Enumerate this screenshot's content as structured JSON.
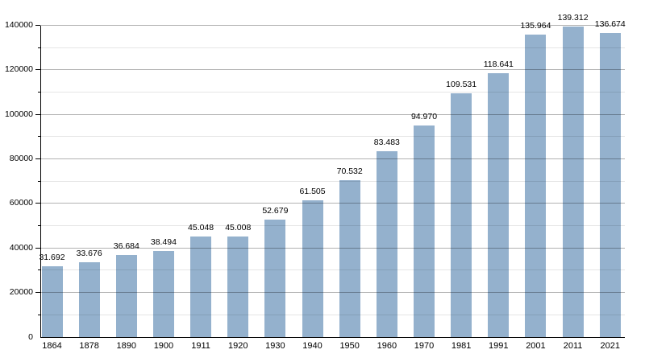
{
  "chart_data": {
    "type": "bar",
    "title": "",
    "xlabel": "",
    "ylabel": "",
    "categories": [
      "1864",
      "1878",
      "1890",
      "1900",
      "1911",
      "1920",
      "1930",
      "1940",
      "1950",
      "1960",
      "1970",
      "1981",
      "1991",
      "2001",
      "2011",
      "2021"
    ],
    "values": [
      31692,
      33676,
      36684,
      38494,
      45048,
      45008,
      52679,
      61505,
      70532,
      83483,
      94970,
      109531,
      118641,
      135964,
      139312,
      136674
    ],
    "value_labels": [
      "31.692",
      "33.676",
      "36.684",
      "38.494",
      "45.048",
      "45.008",
      "52.679",
      "61.505",
      "70.532",
      "83.483",
      "94.970",
      "109.531",
      "118.641",
      "135.964",
      "139.312",
      "136.674"
    ],
    "ylim": [
      0,
      140000
    ],
    "y_major_step": 20000,
    "y_minor_step": 10000,
    "y_tick_labels": [
      "0",
      "20000",
      "40000",
      "60000",
      "80000",
      "100000",
      "120000",
      "140000"
    ],
    "legend": "none",
    "grid": "major and minor horizontal gridlines",
    "bar_color": "#94b1cd",
    "axis_color": "#000000",
    "major_grid_color": "#b3b3b3",
    "minor_grid_color": "#e6e6e6",
    "label_color": "#000000",
    "background_color": "#ffffff"
  }
}
